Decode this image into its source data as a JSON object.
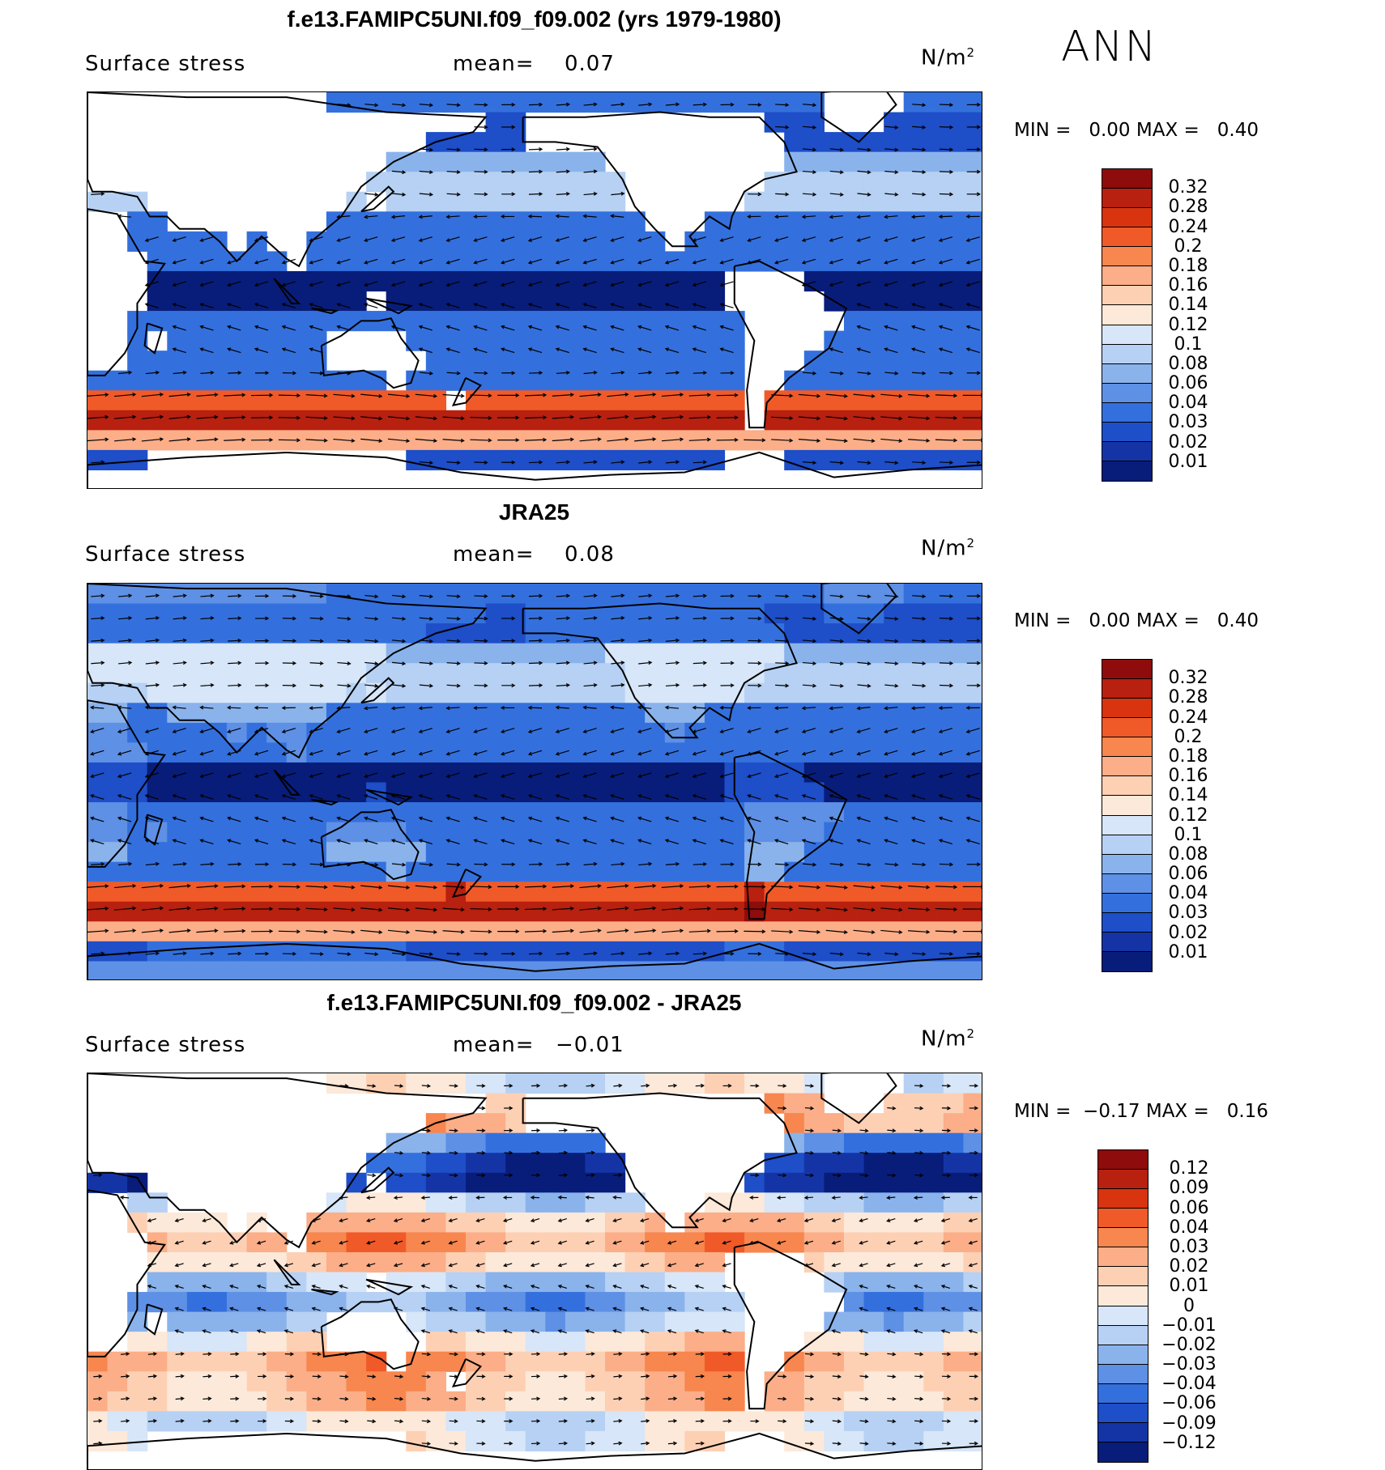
{
  "season": "ANN",
  "panels": [
    {
      "title": "f.e13.FAMIPC5UNI.f09_f09.002 (yrs 1979-1980)",
      "variable": "Surface stress",
      "mean_label": "mean=",
      "mean_value": "0.07",
      "units": "N/m",
      "units_sup": "2",
      "min_label": "MIN =",
      "min_value": "0.00",
      "max_label": "MAX =",
      "max_value": "0.40",
      "colorbar_levels": [
        "0.32",
        "0.28",
        "0.24",
        "0.2",
        "0.18",
        "0.16",
        "0.14",
        "0.12",
        "0.1",
        "0.08",
        "0.06",
        "0.04",
        "0.03",
        "0.02",
        "0.01"
      ],
      "colorbar_colors": [
        "#8e0c0c",
        "#b8200f",
        "#d8340f",
        "#f05a28",
        "#f7864f",
        "#fbae88",
        "#fdd0b4",
        "#fde9d9",
        "#d7e6f8",
        "#b6d1f3",
        "#8ab3ec",
        "#5e90e5",
        "#3470dd",
        "#1e4ec8",
        "#1434a6",
        "#081d7a"
      ],
      "pattern": "model"
    },
    {
      "title": "JRA25",
      "variable": "Surface stress",
      "mean_label": "mean=",
      "mean_value": "0.08",
      "units": "N/m",
      "units_sup": "2",
      "min_label": "MIN =",
      "min_value": "0.00",
      "max_label": "MAX =",
      "max_value": "0.40",
      "colorbar_levels": [
        "0.32",
        "0.28",
        "0.24",
        "0.2",
        "0.18",
        "0.16",
        "0.14",
        "0.12",
        "0.1",
        "0.08",
        "0.06",
        "0.04",
        "0.03",
        "0.02",
        "0.01"
      ],
      "colorbar_colors": [
        "#8e0c0c",
        "#b8200f",
        "#d8340f",
        "#f05a28",
        "#f7864f",
        "#fbae88",
        "#fdd0b4",
        "#fde9d9",
        "#d7e6f8",
        "#b6d1f3",
        "#8ab3ec",
        "#5e90e5",
        "#3470dd",
        "#1e4ec8",
        "#1434a6",
        "#081d7a"
      ],
      "pattern": "obs"
    },
    {
      "title": "f.e13.FAMIPC5UNI.f09_f09.002 - JRA25",
      "variable": "Surface stress",
      "mean_label": "mean=",
      "mean_value": "−0.01",
      "units": "N/m",
      "units_sup": "2",
      "min_label": "MIN =",
      "min_value": "−0.17",
      "max_label": "MAX =",
      "max_value": "0.16",
      "colorbar_levels": [
        "0.12",
        "0.09",
        "0.06",
        "0.04",
        "0.03",
        "0.02",
        "0.01",
        "0",
        "−0.01",
        "−0.02",
        "−0.03",
        "−0.04",
        "−0.06",
        "−0.09",
        "−0.12"
      ],
      "colorbar_colors": [
        "#8e0c0c",
        "#b8200f",
        "#d8340f",
        "#f05a28",
        "#f7864f",
        "#fbae88",
        "#fdd0b4",
        "#fde9d9",
        "#d7e6f8",
        "#b6d1f3",
        "#8ab3ec",
        "#5e90e5",
        "#3470dd",
        "#1e4ec8",
        "#1434a6",
        "#081d7a"
      ],
      "pattern": "diff"
    }
  ]
}
